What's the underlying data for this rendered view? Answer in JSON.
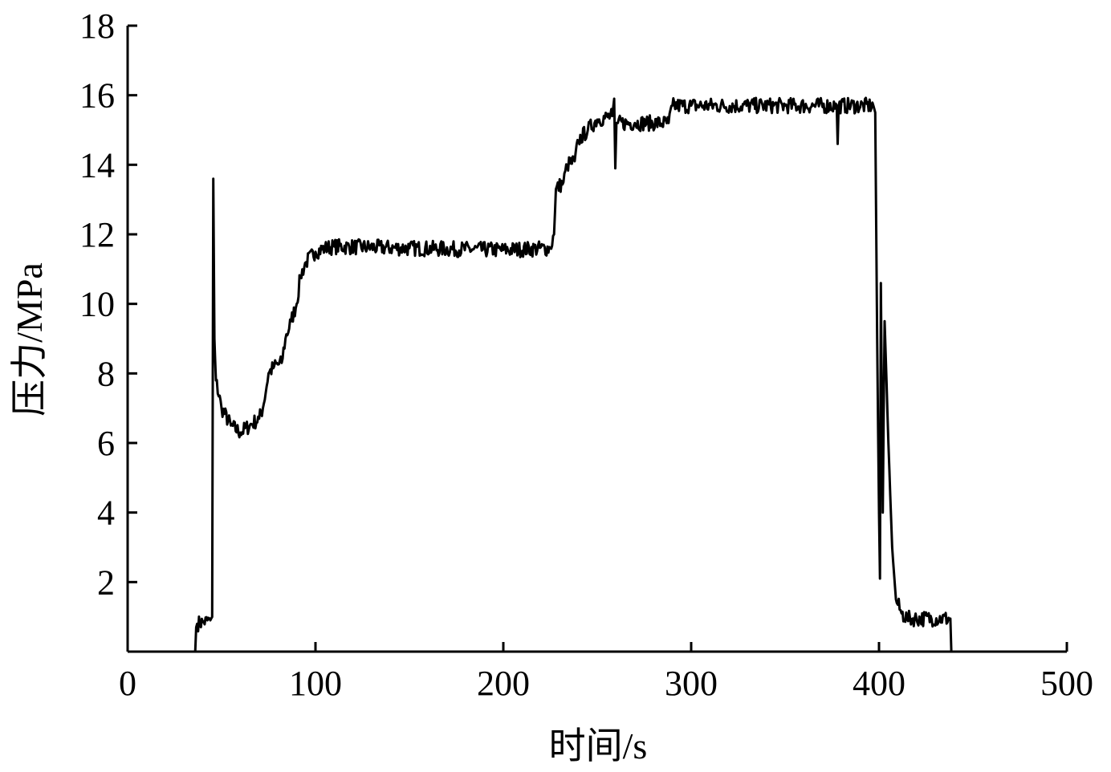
{
  "chart_data": {
    "type": "line",
    "title": "",
    "xlabel": "时间/s",
    "ylabel": "压力/MPa",
    "xlim": [
      0,
      500
    ],
    "ylim": [
      0,
      18
    ],
    "xticks": [
      0,
      100,
      200,
      300,
      400,
      500
    ],
    "yticks": [
      2,
      4,
      6,
      8,
      10,
      12,
      14,
      16,
      18
    ],
    "xtick_labels": [
      "0",
      "100",
      "200",
      "300",
      "400",
      "500"
    ],
    "ytick_labels": [
      "2",
      "4",
      "6",
      "8",
      "10",
      "12",
      "14",
      "16",
      "18"
    ],
    "grid": false,
    "line_color": "#000000",
    "series": [
      {
        "x": [
          36,
          36.5,
          37,
          40,
          44,
          45,
          45.6,
          46.2,
          47,
          50,
          55,
          60,
          65,
          70,
          72,
          75,
          78,
          82,
          84,
          87,
          90,
          92,
          95,
          100,
          105,
          110,
          150,
          200,
          225,
          227,
          228,
          232,
          234,
          238,
          240,
          245,
          250,
          258,
          259,
          259.6,
          260.2,
          261,
          270,
          288,
          290,
          300,
          350,
          377.5,
          378,
          378.5,
          397,
          398,
          399,
          400,
          400.5,
          401,
          402,
          403,
          405,
          407,
          409,
          412,
          415,
          438,
          438.5
        ],
        "y": [
          0,
          0.7,
          0.8,
          0.85,
          0.9,
          1.0,
          13.6,
          9,
          7.8,
          7,
          6.5,
          6.3,
          6.5,
          6.7,
          7,
          8,
          8.2,
          8.3,
          9,
          9.5,
          10,
          10.8,
          11.2,
          11.5,
          11.6,
          11.65,
          11.6,
          11.55,
          11.6,
          12,
          13.3,
          13.5,
          14,
          14.1,
          14.7,
          15,
          15.3,
          15.4,
          15.9,
          13.9,
          15.2,
          15.2,
          15.2,
          15.2,
          15.7,
          15.7,
          15.7,
          15.7,
          14.6,
          15.7,
          15.7,
          15.5,
          9,
          4,
          2.1,
          10.6,
          4,
          9.5,
          6,
          3,
          1.5,
          1.1,
          0.95,
          0.95,
          0
        ]
      }
    ]
  }
}
